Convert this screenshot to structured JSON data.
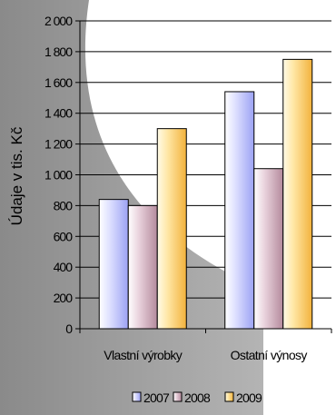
{
  "chart_data": {
    "type": "bar",
    "categories": [
      "Vlastní výrobky",
      "Ostatní výnosy"
    ],
    "series": [
      {
        "name": "2007",
        "values": [
          840,
          1540
        ],
        "color": "#c8ccff"
      },
      {
        "name": "2008",
        "values": [
          800,
          1040
        ],
        "color": "#d9b8c8"
      },
      {
        "name": "2009",
        "values": [
          1300,
          1750
        ],
        "color": "#ffd98a"
      }
    ],
    "ylabel": "Údaje v tis. Kč",
    "xlabel": "",
    "ylim": [
      0,
      2000
    ],
    "yticks": [
      0,
      200,
      400,
      600,
      800,
      1000,
      1200,
      1400,
      1600,
      1800,
      2000
    ],
    "ytick_labels": [
      "0",
      "200",
      "400",
      "600",
      "800",
      "1 000",
      "1 200",
      "1 400",
      "1 600",
      "1 800",
      "2 000"
    ],
    "grid": true,
    "legend_position": "bottom"
  }
}
